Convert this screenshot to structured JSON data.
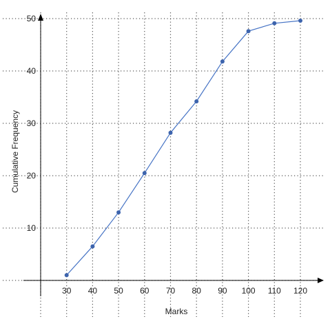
{
  "chart_data": {
    "type": "line",
    "title": "",
    "xlabel": "Marks",
    "ylabel": "Cumulative Frequency",
    "x_ticks": [
      30,
      40,
      50,
      60,
      70,
      80,
      90,
      100,
      110,
      120
    ],
    "y_ticks": [
      10,
      20,
      30,
      40,
      50
    ],
    "xlim": [
      20,
      120
    ],
    "ylim": [
      0,
      50
    ],
    "grid": true,
    "series": [
      {
        "x": [
          30,
          40,
          50,
          60,
          70,
          80,
          90,
          100,
          110,
          120
        ],
        "y": [
          1,
          6.5,
          13,
          20.5,
          28.2,
          34.2,
          41.8,
          47.6,
          49.1,
          49.6
        ]
      }
    ],
    "colors": {
      "line": "#4472c4",
      "marker": "#3d64ad",
      "grid": "#555555",
      "axis": "#000000"
    }
  }
}
